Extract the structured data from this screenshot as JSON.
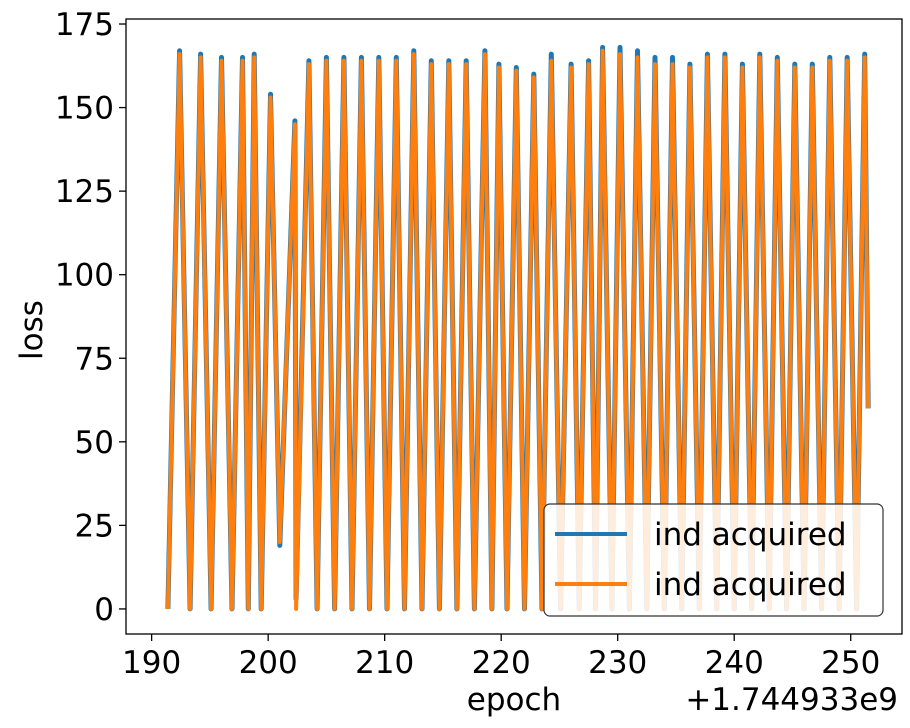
{
  "chart_data": {
    "type": "line",
    "xlabel": "epoch",
    "ylabel": "loss",
    "x_offset_label": "+1.744933e9",
    "xlim": [
      187.8,
      254.4
    ],
    "ylim": [
      -7.5,
      176.5
    ],
    "xticks": [
      190,
      200,
      210,
      220,
      230,
      240,
      250
    ],
    "yticks": [
      0,
      25,
      50,
      75,
      100,
      125,
      150,
      175
    ],
    "grid": false,
    "legend_position": "lower-right",
    "series": [
      {
        "name": "ind acquired",
        "color": "#1f77b4",
        "peaks": [
          [
            192.4,
            167
          ],
          [
            194.2,
            166
          ],
          [
            196.0,
            165
          ],
          [
            197.8,
            165
          ],
          [
            198.8,
            166
          ],
          [
            200.2,
            154
          ],
          [
            202.3,
            146
          ],
          [
            203.5,
            164
          ],
          [
            205.0,
            165
          ],
          [
            206.5,
            165
          ],
          [
            208.0,
            165
          ],
          [
            209.5,
            165
          ],
          [
            211.0,
            165
          ],
          [
            212.5,
            167
          ],
          [
            214.0,
            164
          ],
          [
            215.5,
            164
          ],
          [
            217.0,
            164
          ],
          [
            218.6,
            167
          ],
          [
            219.8,
            163
          ],
          [
            221.3,
            162
          ],
          [
            222.8,
            160
          ],
          [
            224.3,
            166
          ],
          [
            226.0,
            163
          ],
          [
            227.5,
            164
          ],
          [
            228.7,
            168
          ],
          [
            230.2,
            168
          ],
          [
            231.7,
            167
          ],
          [
            233.2,
            165
          ],
          [
            234.7,
            165
          ],
          [
            236.2,
            163
          ],
          [
            237.7,
            166
          ],
          [
            239.2,
            166
          ],
          [
            240.7,
            163
          ],
          [
            242.2,
            166
          ],
          [
            243.7,
            165
          ],
          [
            245.2,
            163
          ],
          [
            246.7,
            163
          ],
          [
            248.2,
            165
          ],
          [
            249.7,
            165
          ],
          [
            251.2,
            166
          ]
        ],
        "troughs": [
          [
            191.4,
            0
          ],
          [
            193.3,
            0
          ],
          [
            195.1,
            0
          ],
          [
            196.9,
            0
          ],
          [
            198.3,
            0
          ],
          [
            199.4,
            0
          ],
          [
            201.0,
            19
          ],
          [
            202.4,
            3
          ],
          [
            204.2,
            0
          ],
          [
            205.7,
            0
          ],
          [
            207.2,
            0
          ],
          [
            208.7,
            0
          ],
          [
            210.2,
            0
          ],
          [
            211.7,
            0
          ],
          [
            213.2,
            0
          ],
          [
            214.7,
            0
          ],
          [
            216.2,
            0
          ],
          [
            217.7,
            0
          ],
          [
            219.2,
            0
          ],
          [
            220.5,
            0
          ],
          [
            222.0,
            0
          ],
          [
            223.5,
            0
          ],
          [
            225.1,
            0
          ],
          [
            226.7,
            0
          ],
          [
            228.1,
            0
          ],
          [
            229.5,
            0
          ],
          [
            231.0,
            0
          ],
          [
            232.5,
            0
          ],
          [
            234.0,
            0
          ],
          [
            235.5,
            0
          ],
          [
            237.0,
            0
          ],
          [
            238.5,
            0
          ],
          [
            240.0,
            0
          ],
          [
            241.5,
            0
          ],
          [
            243.0,
            0
          ],
          [
            244.5,
            0
          ],
          [
            246.0,
            0
          ],
          [
            247.5,
            0
          ],
          [
            249.0,
            0
          ],
          [
            250.5,
            0
          ]
        ],
        "end": [
          251.5,
          60
        ]
      },
      {
        "name": "ind acquired",
        "color": "#ff7f0e",
        "peaks": [
          [
            192.4,
            166
          ],
          [
            194.2,
            165
          ],
          [
            196.0,
            164
          ],
          [
            197.8,
            164
          ],
          [
            198.8,
            165
          ],
          [
            200.2,
            153
          ],
          [
            202.3,
            145
          ],
          [
            203.5,
            163
          ],
          [
            205.0,
            164
          ],
          [
            206.5,
            164
          ],
          [
            208.0,
            164
          ],
          [
            209.5,
            164
          ],
          [
            211.0,
            164
          ],
          [
            212.5,
            166
          ],
          [
            214.0,
            163
          ],
          [
            215.5,
            163
          ],
          [
            217.0,
            163
          ],
          [
            218.6,
            166
          ],
          [
            219.8,
            162
          ],
          [
            221.3,
            161
          ],
          [
            222.8,
            159
          ],
          [
            224.3,
            164
          ],
          [
            226.0,
            162
          ],
          [
            227.5,
            163
          ],
          [
            228.7,
            167
          ],
          [
            230.2,
            166
          ],
          [
            231.7,
            165
          ],
          [
            233.2,
            163
          ],
          [
            234.7,
            163
          ],
          [
            236.2,
            162
          ],
          [
            237.7,
            165
          ],
          [
            239.2,
            165
          ],
          [
            240.7,
            162
          ],
          [
            242.2,
            165
          ],
          [
            243.7,
            164
          ],
          [
            245.2,
            162
          ],
          [
            246.7,
            162
          ],
          [
            248.2,
            164
          ],
          [
            249.7,
            164
          ],
          [
            251.2,
            165
          ]
        ],
        "troughs": [
          [
            191.4,
            0
          ],
          [
            193.3,
            0
          ],
          [
            195.1,
            0
          ],
          [
            196.9,
            0
          ],
          [
            198.3,
            0
          ],
          [
            199.4,
            0
          ],
          [
            201.0,
            20
          ],
          [
            202.4,
            0
          ],
          [
            204.2,
            0
          ],
          [
            205.7,
            0
          ],
          [
            207.2,
            0
          ],
          [
            208.7,
            0
          ],
          [
            210.2,
            0
          ],
          [
            211.7,
            0
          ],
          [
            213.2,
            0
          ],
          [
            214.7,
            0
          ],
          [
            216.2,
            0
          ],
          [
            217.7,
            0
          ],
          [
            219.2,
            0
          ],
          [
            220.5,
            0
          ],
          [
            222.0,
            0
          ],
          [
            223.5,
            0
          ],
          [
            225.1,
            0
          ],
          [
            226.7,
            0
          ],
          [
            228.1,
            0
          ],
          [
            229.5,
            0
          ],
          [
            231.0,
            0
          ],
          [
            232.5,
            0
          ],
          [
            234.0,
            0
          ],
          [
            235.5,
            0
          ],
          [
            237.0,
            0
          ],
          [
            238.5,
            0
          ],
          [
            240.0,
            0
          ],
          [
            241.5,
            0
          ],
          [
            243.0,
            0
          ],
          [
            244.5,
            0
          ],
          [
            246.0,
            0
          ],
          [
            247.5,
            0
          ],
          [
            249.0,
            0
          ],
          [
            250.5,
            0
          ]
        ],
        "end": [
          251.5,
          60
        ]
      }
    ]
  }
}
